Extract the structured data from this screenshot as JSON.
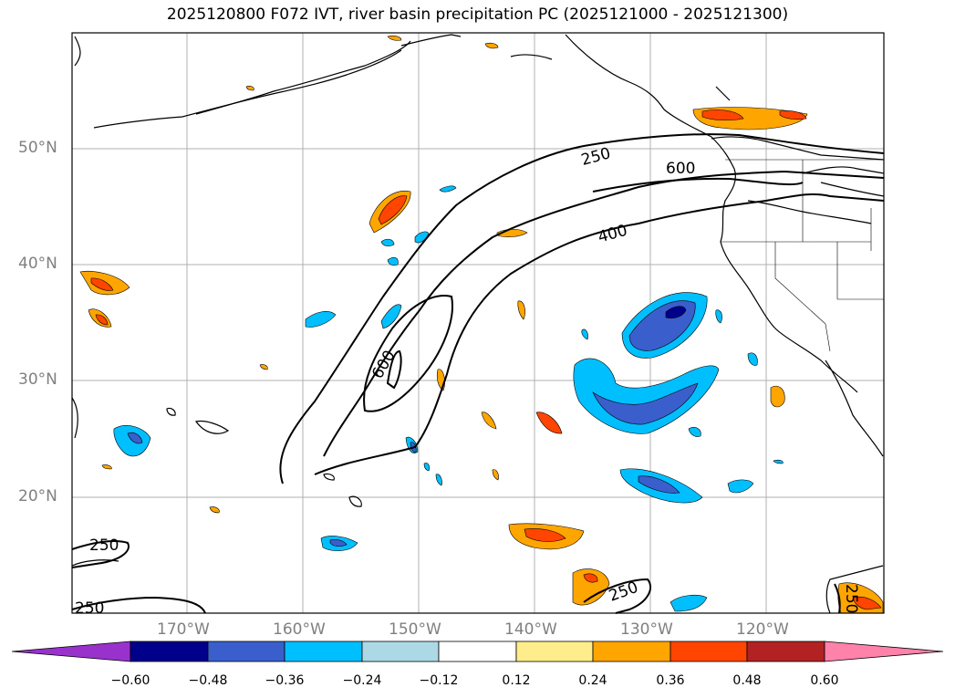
{
  "title": "2025120800 F072 IVT, river basin precipitation PC (2025121000 - 2025121300)",
  "lat_labels": [
    "50°N",
    "40°N",
    "30°N",
    "20°N"
  ],
  "lon_labels": [
    "170°W",
    "160°W",
    "150°W",
    "140°W",
    "130°W",
    "120°W"
  ],
  "contour_labels": [
    "250",
    "600",
    "400",
    "600",
    "250",
    "250",
    "250",
    "250"
  ],
  "colorbar": {
    "ticks": [
      "−0.60",
      "−0.48",
      "−0.36",
      "−0.24",
      "−0.12",
      "0.12",
      "0.24",
      "0.36",
      "0.48",
      "0.60"
    ],
    "colors": [
      "#9932cc",
      "#00008b",
      "#3a5fcd",
      "#00bfff",
      "#add8e6",
      "#ffffff",
      "#ffec8b",
      "#ffa500",
      "#ff4500",
      "#b22222",
      "#ff82ab"
    ]
  }
}
